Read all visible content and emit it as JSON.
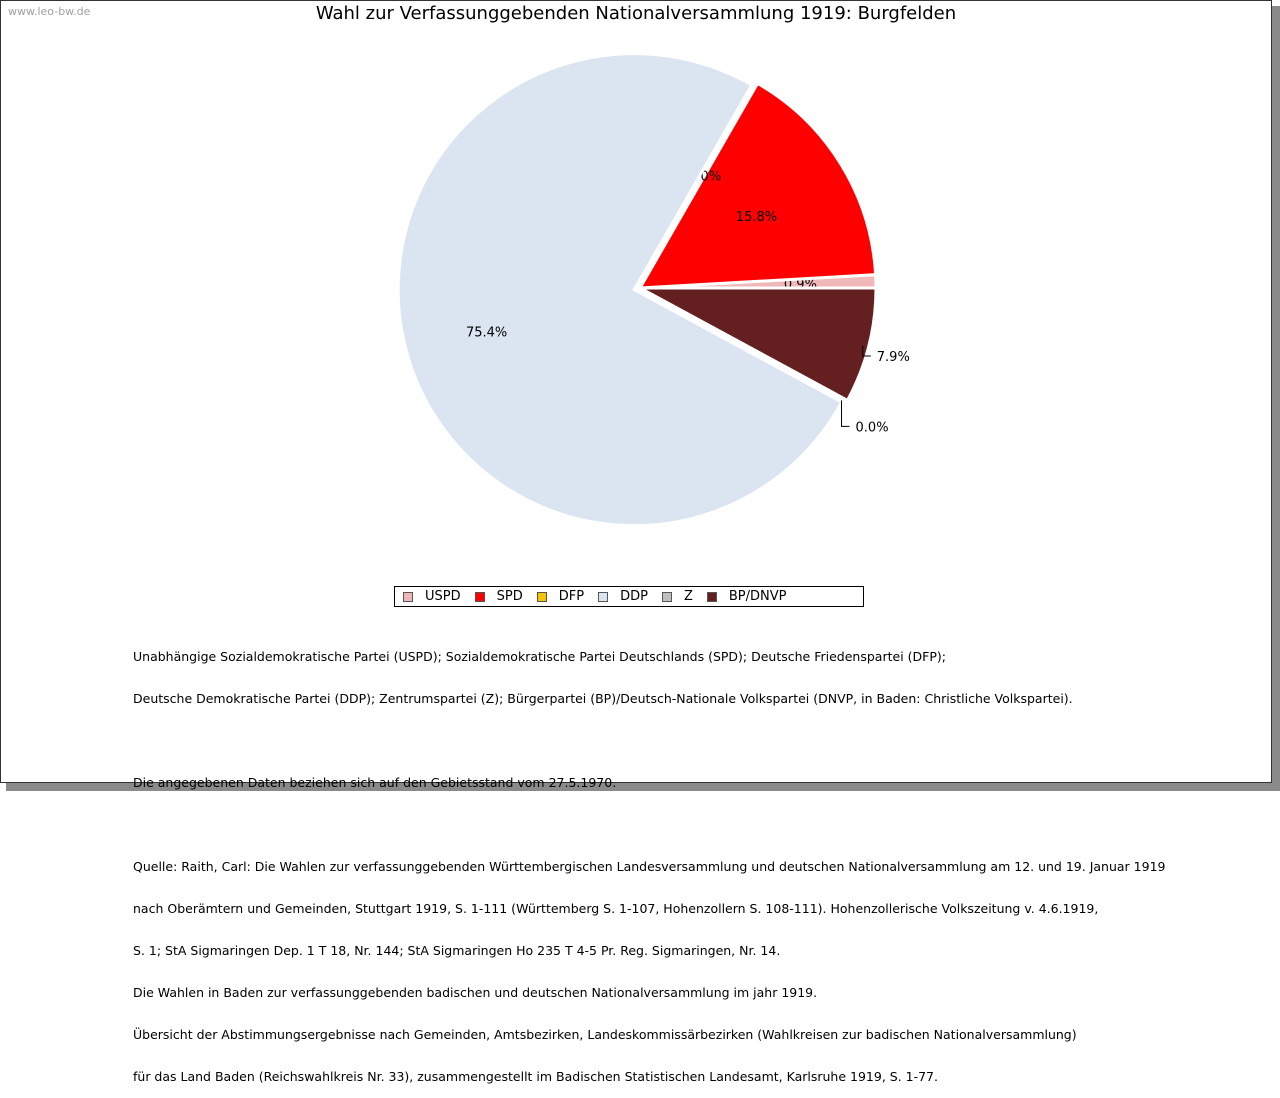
{
  "watermark": "www.leo-bw.de",
  "chart_data": {
    "type": "pie",
    "title": "Wahl zur Verfassunggebenden Nationalversammlung 1919: Burgfelden",
    "categories": [
      "USPD",
      "SPD",
      "DFP",
      "DDP",
      "Z",
      "BP/DNVP"
    ],
    "values": [
      0.9,
      15.8,
      0.0,
      75.4,
      0.0,
      7.9
    ],
    "labels": [
      "0.9%",
      "15.8%",
      "0.0%",
      "75.4%",
      "0.0%",
      "7.9%"
    ],
    "colors": [
      "#f0b8b8",
      "#ff0000",
      "#f5c400",
      "#dbe5f1",
      "#c0c0c0",
      "#642020"
    ],
    "legend_position": "bottom"
  },
  "notes": {
    "line1": "Unabhängige Sozialdemokratische Partei (USPD); Sozialdemokratische Partei Deutschlands (SPD); Deutsche Friedenspartei (DFP);",
    "line2": "Deutsche Demokratische Partei (DDP); Zentrumspartei (Z); Bürgerpartei (BP)/Deutsch-Nationale Volkspartei (DNVP, in Baden: Christliche Volkspartei).",
    "line3": "Die angegebenen Daten beziehen sich auf den Gebietsstand vom 27.5.1970.",
    "line4": "Quelle: Raith, Carl: Die Wahlen zur verfassunggebenden Württembergischen Landesversammlung und deutschen Nationalversammlung am 12. und 19. Januar 1919",
    "line5": "nach Oberämtern und Gemeinden, Stuttgart 1919, S. 1-111 (Württemberg S. 1-107, Hohenzollern S. 108-111). Hohenzollerische Volkszeitung v. 4.6.1919,",
    "line6": "S. 1; StA Sigmaringen Dep. 1 T 18, Nr. 144; StA Sigmaringen Ho 235 T 4-5 Pr. Reg. Sigmaringen, Nr. 14.",
    "line7": "Die Wahlen in Baden zur verfassunggebenden badischen und deutschen Nationalversammlung im jahr 1919.",
    "line8": "Übersicht der Abstimmungsergebnisse nach Gemeinden, Amtsbezirken, Landeskommissärbezirken (Wahlkreisen zur badischen Nationalversammlung)",
    "line9": "für das Land Baden (Reichswahlkreis Nr. 33), zusammengestellt im Badischen Statistischen Landesamt, Karlsruhe 1919, S. 1-77."
  }
}
